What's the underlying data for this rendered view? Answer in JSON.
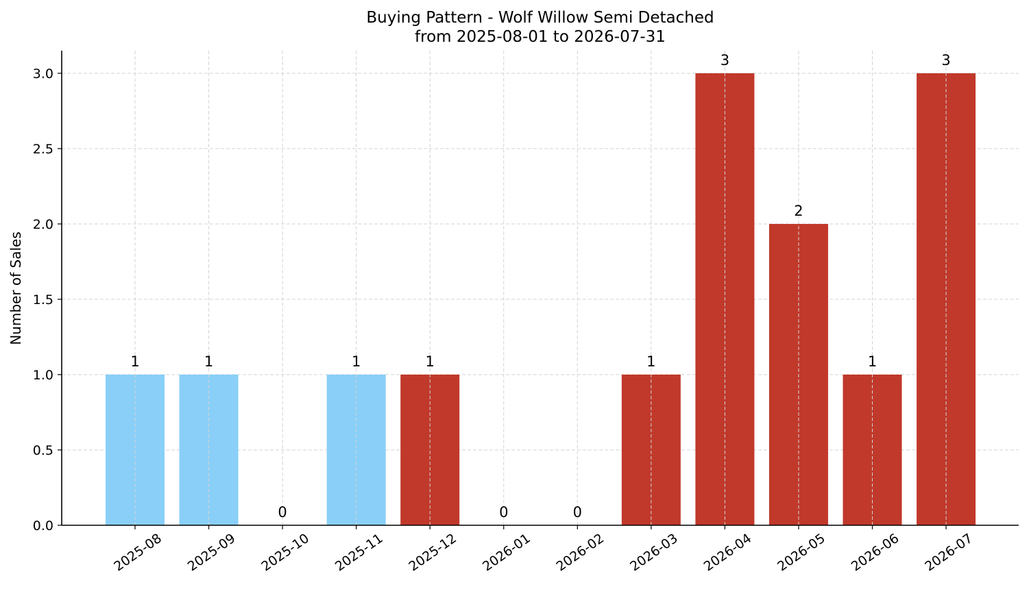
{
  "chart_data": {
    "type": "bar",
    "title": "Buying Pattern - Wolf Willow Semi Detached",
    "subtitle": "from 2025-08-01 to 2026-07-31",
    "xlabel": "",
    "ylabel": "Number of Sales",
    "categories": [
      "2025-08",
      "2025-09",
      "2025-10",
      "2025-11",
      "2025-12",
      "2026-01",
      "2026-02",
      "2026-03",
      "2026-04",
      "2026-05",
      "2026-06",
      "2026-07"
    ],
    "values": [
      1,
      1,
      0,
      1,
      1,
      0,
      0,
      1,
      3,
      2,
      1,
      3
    ],
    "bar_colors": [
      "#89cff8",
      "#89cff8",
      "#89cff8",
      "#89cff8",
      "#c0392b",
      "#c0392b",
      "#c0392b",
      "#c0392b",
      "#c0392b",
      "#c0392b",
      "#c0392b",
      "#c0392b"
    ],
    "ylim": [
      0,
      3.15
    ],
    "yticks": [
      0.0,
      0.5,
      1.0,
      1.5,
      2.0,
      2.5,
      3.0
    ],
    "ytick_labels": [
      "0.0",
      "0.5",
      "1.0",
      "1.5",
      "2.0",
      "2.5",
      "3.0"
    ],
    "grid": true,
    "data_labels": true
  }
}
